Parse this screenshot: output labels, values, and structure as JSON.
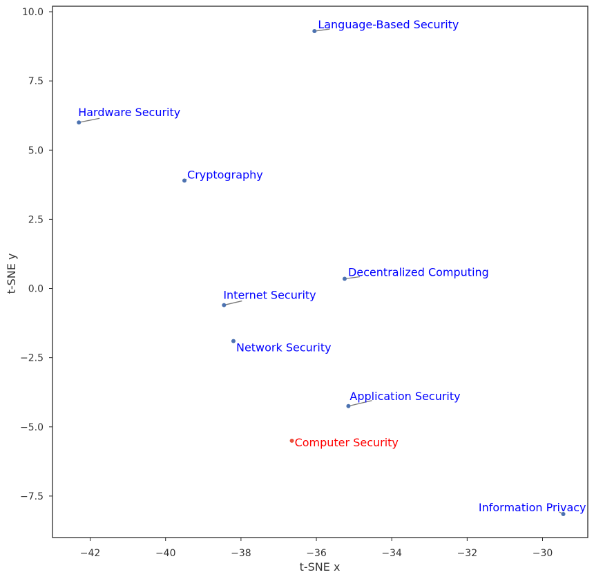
{
  "chart_data": {
    "type": "scatter",
    "title": "",
    "xlabel": "t-SNE x",
    "ylabel": "t-SNE y",
    "xlim": [
      -43.0,
      -28.8
    ],
    "ylim": [
      -9.0,
      10.2
    ],
    "xticks": [
      -42,
      -40,
      -38,
      -36,
      -34,
      -32,
      -30
    ],
    "yticks": [
      -7.5,
      -5.0,
      -2.5,
      0.0,
      2.5,
      5.0,
      7.5,
      10.0
    ],
    "grid": false,
    "points": [
      {
        "label": "Language-Based Security",
        "x": -36.05,
        "y": 9.3,
        "color": "#4c72b0",
        "label_color": "#0000ff"
      },
      {
        "label": "Hardware Security",
        "x": -42.3,
        "y": 6.0,
        "color": "#4c72b0",
        "label_color": "#0000ff"
      },
      {
        "label": "Cryptography",
        "x": -39.5,
        "y": 3.9,
        "color": "#4c72b0",
        "label_color": "#0000ff"
      },
      {
        "label": "Decentralized Computing",
        "x": -35.25,
        "y": 0.35,
        "color": "#4c72b0",
        "label_color": "#0000ff"
      },
      {
        "label": "Internet Security",
        "x": -38.45,
        "y": -0.6,
        "color": "#4c72b0",
        "label_color": "#0000ff"
      },
      {
        "label": "Network Security",
        "x": -38.2,
        "y": -1.9,
        "color": "#4c72b0",
        "label_color": "#0000ff"
      },
      {
        "label": "Application Security",
        "x": -35.15,
        "y": -4.25,
        "color": "#4c72b0",
        "label_color": "#0000ff"
      },
      {
        "label": "Computer Security",
        "x": -36.65,
        "y": -5.5,
        "color": "#e8533e",
        "label_color": "#ff0000"
      },
      {
        "label": "Information Privacy",
        "x": -29.45,
        "y": -8.15,
        "color": "#4c72b0",
        "label_color": "#0000ff"
      }
    ]
  }
}
